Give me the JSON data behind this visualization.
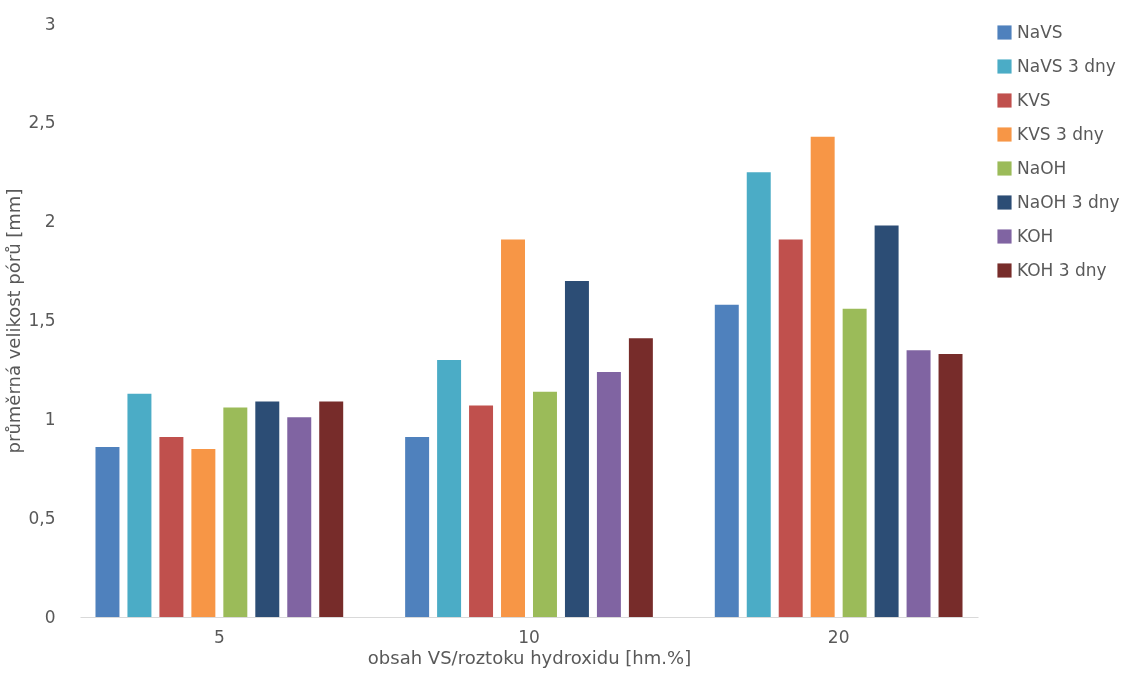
{
  "chart_data": {
    "type": "bar",
    "xlabel": "obsah VS/roztoku hydroxidu [hm.%]",
    "ylabel": "průměrná velikost pórů [mm]",
    "categories": [
      "5",
      "10",
      "20"
    ],
    "series": [
      {
        "name": "NaVS",
        "color": "#4f81bd",
        "values": [
          0.86,
          0.91,
          1.58
        ]
      },
      {
        "name": "NaVS 3 dny",
        "color": "#4bacc6",
        "values": [
          1.13,
          1.3,
          2.25
        ]
      },
      {
        "name": "KVS",
        "color": "#c0504d",
        "values": [
          0.91,
          1.07,
          1.91
        ]
      },
      {
        "name": "KVS 3 dny",
        "color": "#f79646",
        "values": [
          0.85,
          1.91,
          2.43
        ]
      },
      {
        "name": "NaOH",
        "color": "#9bbb59",
        "values": [
          1.06,
          1.14,
          1.56
        ]
      },
      {
        "name": "NaOH 3 dny",
        "color": "#2c4d75",
        "values": [
          1.09,
          1.7,
          1.98
        ]
      },
      {
        "name": "KOH",
        "color": "#8064a2",
        "values": [
          1.01,
          1.24,
          1.35
        ]
      },
      {
        "name": "KOH 3 dny",
        "color": "#772c2a",
        "values": [
          1.09,
          1.41,
          1.33
        ]
      }
    ],
    "ylim": [
      0,
      3
    ],
    "yticks": [
      0,
      {
        "value": 0.5,
        "label": "0,5"
      },
      1,
      {
        "value": 1.5,
        "label": "1,5"
      },
      2,
      {
        "value": 2.5,
        "label": "2,5"
      },
      3
    ],
    "grid": false,
    "legend": "right"
  }
}
